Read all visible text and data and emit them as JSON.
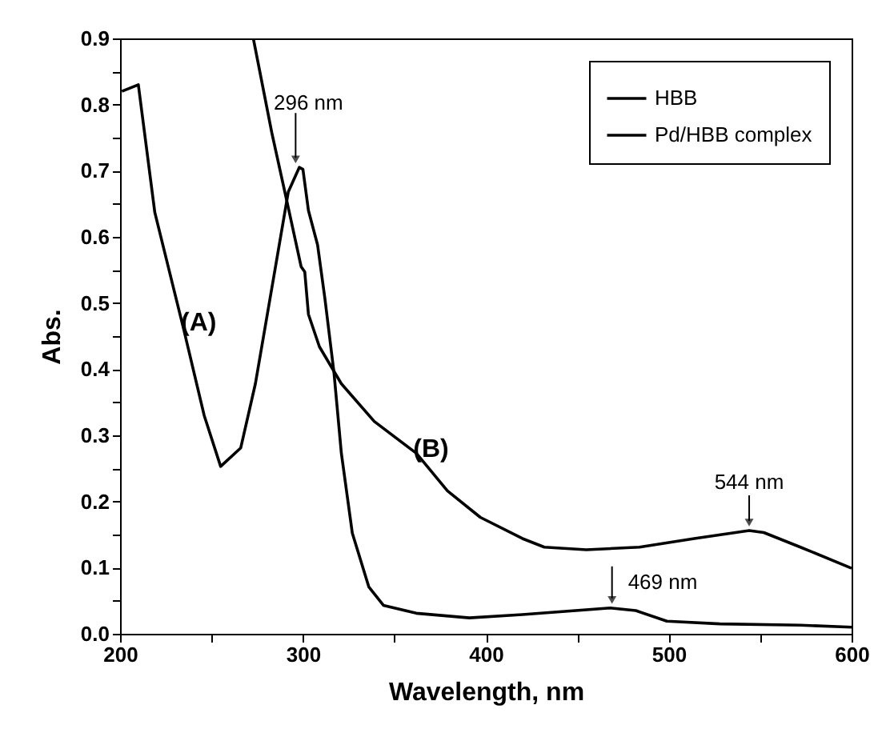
{
  "chart_data": {
    "type": "line",
    "xlabel": "Wavelength, nm",
    "ylabel": "Abs.",
    "xlim": [
      200,
      600
    ],
    "xticks": [
      200,
      {
        "value": 250,
        "label": null
      },
      300,
      {
        "value": 350,
        "label": null
      },
      400,
      {
        "value": 450,
        "label": null
      },
      500,
      {
        "value": 550,
        "label": null
      },
      600
    ],
    "ylim": [
      0,
      0.9
    ],
    "yticks": [
      {
        "value": 0,
        "label": "0.0"
      },
      {
        "value": 0.05,
        "label": null
      },
      0.1,
      {
        "value": 0.15,
        "label": null
      },
      0.2,
      {
        "value": 0.25,
        "label": null
      },
      0.3,
      {
        "value": 0.35,
        "label": null
      },
      0.4,
      {
        "value": 0.45,
        "label": null
      },
      0.5,
      {
        "value": 0.55,
        "label": null
      },
      0.6,
      {
        "value": 0.65,
        "label": null
      },
      0.7,
      {
        "value": 0.75,
        "label": null
      },
      0.8,
      {
        "value": 0.85,
        "label": null
      },
      0.9
    ],
    "grid": false,
    "legend": "top right",
    "line_style": "solid",
    "marker": "none",
    "series": [
      {
        "name": "HBB",
        "color": "#000000",
        "x": [
          201,
          210,
          219,
          235,
          246,
          255,
          266,
          274,
          285,
          292,
          298,
          300,
          303,
          308,
          312,
          317,
          321,
          327,
          336,
          344,
          362,
          391,
          420,
          468,
          482,
          499,
          528,
          572,
          600
        ],
        "values": [
          0.82,
          0.83,
          0.637,
          0.458,
          0.33,
          0.253,
          0.281,
          0.378,
          0.555,
          0.668,
          0.705,
          0.702,
          0.64,
          0.588,
          0.507,
          0.394,
          0.273,
          0.152,
          0.071,
          0.043,
          0.031,
          0.024,
          0.029,
          0.039,
          0.035,
          0.019,
          0.015,
          0.013,
          0.01
        ]
      },
      {
        "name": "Pd/HBB complex",
        "color": "#000000",
        "x": [
          273,
          283,
          292,
          299,
          301,
          303,
          309,
          321,
          339,
          362,
          379,
          397,
          420,
          432,
          455,
          484,
          514,
          544,
          552,
          572,
          600
        ],
        "values": [
          0.898,
          0.757,
          0.644,
          0.555,
          0.547,
          0.483,
          0.434,
          0.378,
          0.321,
          0.273,
          0.216,
          0.176,
          0.144,
          0.131,
          0.127,
          0.131,
          0.144,
          0.156,
          0.153,
          0.131,
          0.099
        ]
      }
    ],
    "annotations": [
      {
        "text": "296 nm",
        "x": 296,
        "y": 0.705
      },
      {
        "text": "544 nm",
        "x": 544,
        "y": 0.156
      },
      {
        "text": "469 nm",
        "x": 469,
        "y": 0.039
      },
      "(A)",
      "(B)"
    ]
  }
}
